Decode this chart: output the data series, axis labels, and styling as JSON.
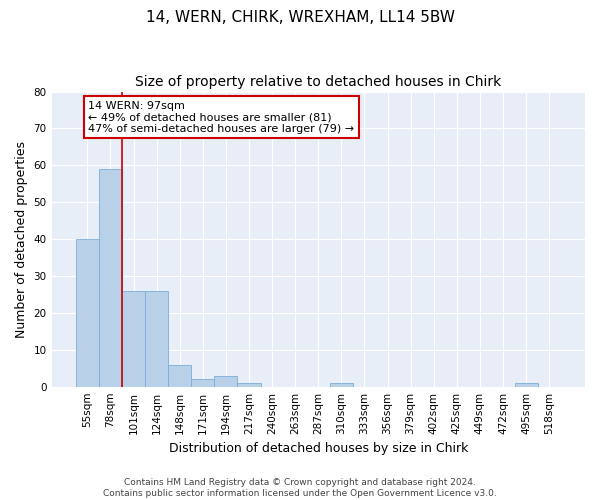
{
  "title": "14, WERN, CHIRK, WREXHAM, LL14 5BW",
  "subtitle": "Size of property relative to detached houses in Chirk",
  "xlabel": "Distribution of detached houses by size in Chirk",
  "ylabel": "Number of detached properties",
  "categories": [
    "55sqm",
    "78sqm",
    "101sqm",
    "124sqm",
    "148sqm",
    "171sqm",
    "194sqm",
    "217sqm",
    "240sqm",
    "263sqm",
    "287sqm",
    "310sqm",
    "333sqm",
    "356sqm",
    "379sqm",
    "402sqm",
    "425sqm",
    "449sqm",
    "472sqm",
    "495sqm",
    "518sqm"
  ],
  "values": [
    40,
    59,
    26,
    26,
    6,
    2,
    3,
    1,
    0,
    0,
    0,
    1,
    0,
    0,
    0,
    0,
    0,
    0,
    0,
    1,
    0
  ],
  "bar_color": "#b8d0e8",
  "bar_edge_color": "#7aafd4",
  "background_color": "#e8eef8",
  "vline_index": 1.5,
  "annotation_text": "14 WERN: 97sqm\n← 49% of detached houses are smaller (81)\n47% of semi-detached houses are larger (79) →",
  "annotation_box_color": "#ffffff",
  "annotation_box_edge": "#cc0000",
  "ylim": [
    0,
    80
  ],
  "yticks": [
    0,
    10,
    20,
    30,
    40,
    50,
    60,
    70,
    80
  ],
  "footer": "Contains HM Land Registry data © Crown copyright and database right 2024.\nContains public sector information licensed under the Open Government Licence v3.0.",
  "vline_color": "#cc0000",
  "title_fontsize": 11,
  "subtitle_fontsize": 10,
  "ylabel_fontsize": 9,
  "xlabel_fontsize": 9,
  "tick_fontsize": 7.5,
  "footer_fontsize": 6.5,
  "ann_fontsize": 8
}
